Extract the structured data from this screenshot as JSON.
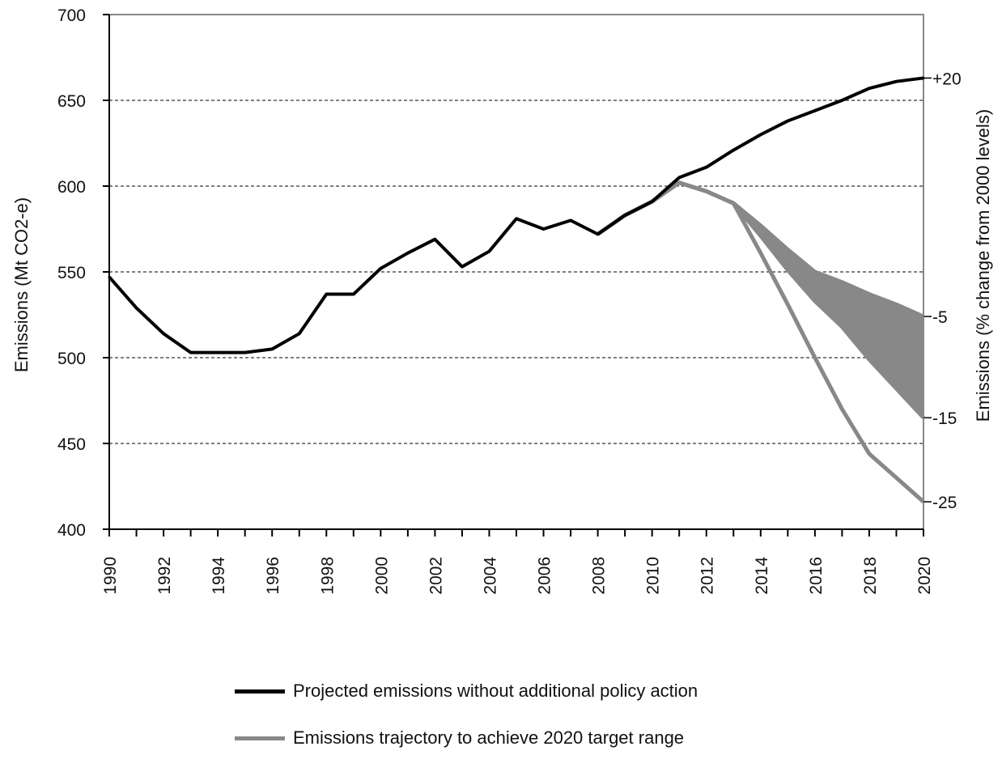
{
  "chart_data": {
    "type": "line",
    "xlabel": "",
    "ylabel": "Emissions (Mt CO2-e)",
    "ylabel_right": "Emissions (% change from 2000 levels)",
    "ylim": [
      400,
      700
    ],
    "y_ticks": [
      400,
      450,
      500,
      550,
      600,
      650,
      700
    ],
    "x_ticks": [
      "1990",
      "1992",
      "1994",
      "1996",
      "1998",
      "2000",
      "2002",
      "2004",
      "2006",
      "2008",
      "2010",
      "2012",
      "2014",
      "2016",
      "2018",
      "2020"
    ],
    "right_ticks": [
      {
        "label": "+20",
        "at": 663
      },
      {
        "label": "-5",
        "at": 524
      },
      {
        "label": "-15",
        "at": 465
      },
      {
        "label": "-25",
        "at": 416
      }
    ],
    "grid": "horizontal dashed",
    "series": [
      {
        "name": "Projected emissions without additional policy action",
        "color": "#000000",
        "x": [
          1990,
          1991,
          1992,
          1993,
          1994,
          1995,
          1996,
          1997,
          1998,
          1999,
          2000,
          2001,
          2002,
          2003,
          2004,
          2005,
          2006,
          2007,
          2008,
          2009,
          2010,
          2011,
          2012,
          2013,
          2014,
          2015,
          2016,
          2017,
          2018,
          2019,
          2020
        ],
        "y": [
          547,
          529,
          514,
          503,
          503,
          503,
          505,
          514,
          537,
          537,
          552,
          561,
          569,
          553,
          562,
          581,
          575,
          580,
          572,
          583,
          591,
          605,
          611,
          621,
          630,
          638,
          644,
          650,
          657,
          661,
          663
        ]
      },
      {
        "name": "Emissions trajectory to achieve 2020 target range",
        "color": "#888888",
        "x": [
          2008,
          2009,
          2010,
          2011,
          2012,
          2013,
          2014,
          2015,
          2016,
          2017,
          2018,
          2019,
          2020
        ],
        "upper": [
          572,
          583,
          591,
          602,
          597,
          590,
          577,
          563,
          550,
          544,
          537,
          531,
          524
        ],
        "lower": [
          572,
          583,
          591,
          602,
          597,
          590,
          571,
          551,
          533,
          518,
          499,
          482,
          465
        ],
        "floor": [
          572,
          583,
          591,
          602,
          597,
          590,
          561,
          531,
          500,
          470,
          444,
          430,
          416
        ]
      }
    ]
  },
  "legend": {
    "items": [
      {
        "label": "Projected emissions without additional policy action",
        "color": "#000000"
      },
      {
        "label": "Emissions trajectory to achieve 2020 target range",
        "color": "#888888"
      }
    ]
  }
}
